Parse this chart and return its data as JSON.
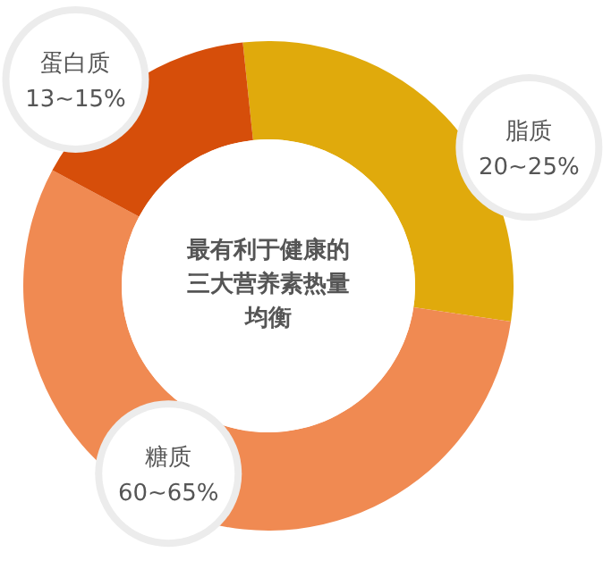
{
  "chart_data": {
    "type": "donut",
    "title": "最有利于健康的三大营养素热量均衡",
    "categories": [
      "脂质",
      "糖质",
      "蛋白质"
    ],
    "values": [
      29,
      55.5,
      15.5
    ],
    "colors": [
      "#e0aa0c",
      "#f08a52",
      "#d64e0a"
    ],
    "annotations": [
      "20~25%",
      "60~65%",
      "13~15%"
    ]
  }
}
